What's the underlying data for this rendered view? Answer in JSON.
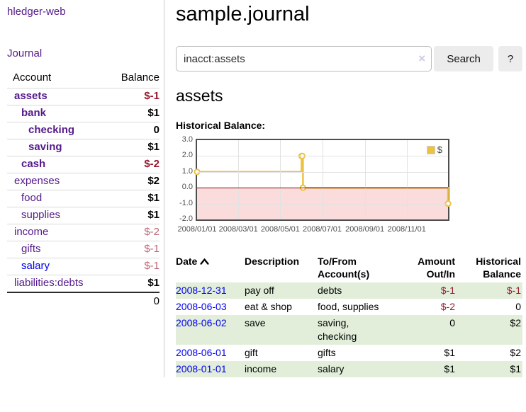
{
  "brand": "hledger-web",
  "sidebar": {
    "journal_link": "Journal",
    "accounts": {
      "header": {
        "account": "Account",
        "balance": "Balance"
      },
      "rows": [
        {
          "name": "assets",
          "depth": 1,
          "emphasis": true,
          "balance": "$-1",
          "negative": true,
          "link_tone": "visited"
        },
        {
          "name": "bank",
          "depth": 2,
          "emphasis": true,
          "balance": "$1",
          "negative": false,
          "link_tone": "visited"
        },
        {
          "name": "checking",
          "depth": 3,
          "emphasis": true,
          "balance": "0",
          "negative": false,
          "link_tone": "visited"
        },
        {
          "name": "saving",
          "depth": 3,
          "emphasis": true,
          "balance": "$1",
          "negative": false,
          "link_tone": "visited"
        },
        {
          "name": "cash",
          "depth": 2,
          "emphasis": true,
          "balance": "$-2",
          "negative": true,
          "link_tone": "visited"
        },
        {
          "name": "expenses",
          "depth": 1,
          "emphasis": false,
          "balance": "$2",
          "negative": false,
          "link_tone": "visited"
        },
        {
          "name": "food",
          "depth": 2,
          "emphasis": false,
          "balance": "$1",
          "negative": false,
          "link_tone": "visited"
        },
        {
          "name": "supplies",
          "depth": 2,
          "emphasis": false,
          "balance": "$1",
          "negative": false,
          "link_tone": "visited"
        },
        {
          "name": "income",
          "depth": 1,
          "emphasis": false,
          "balance": "$-2",
          "negative": true,
          "link_tone": "visited"
        },
        {
          "name": "gifts",
          "depth": 2,
          "emphasis": false,
          "balance": "$-1",
          "negative": true,
          "link_tone": "visited"
        },
        {
          "name": "salary",
          "depth": 2,
          "emphasis": false,
          "balance": "$-1",
          "negative": true,
          "link_tone": "unvisited"
        },
        {
          "name": "liabilities:debts",
          "depth": 1,
          "emphasis": false,
          "balance": "$1",
          "negative": false,
          "link_tone": "visited"
        }
      ],
      "total": "0"
    }
  },
  "main": {
    "title": "sample.journal",
    "search": {
      "value": "inacct:assets",
      "clear_icon": "×",
      "search_button": "Search",
      "help_button": "?"
    },
    "account_heading": "assets",
    "section_label": "Historical Balance:"
  },
  "chart_data": {
    "type": "line",
    "step": true,
    "title": "Historical Balance:",
    "x_start": "2008-01-01",
    "x_end": "2008-12-31",
    "ylim": [
      -2,
      3
    ],
    "y_ticks": [
      {
        "label": "3.0",
        "value": 3
      },
      {
        "label": "2.0",
        "value": 2
      },
      {
        "label": "1.0",
        "value": 1
      },
      {
        "label": "0.0",
        "value": 0
      },
      {
        "label": "-1.0",
        "value": -1
      },
      {
        "label": "-2.0",
        "value": -2
      }
    ],
    "x_ticks": [
      {
        "label": "2008/01/01",
        "date": "2008-01-01"
      },
      {
        "label": "2008/03/01",
        "date": "2008-03-01"
      },
      {
        "label": "2008/05/01",
        "date": "2008-05-01"
      },
      {
        "label": "2008/07/01",
        "date": "2008-07-01"
      },
      {
        "label": "2008/09/01",
        "date": "2008-09-01"
      },
      {
        "label": "2008/11/01",
        "date": "2008-11-01"
      }
    ],
    "series": [
      {
        "name": "$",
        "color": "#edc240",
        "points": [
          {
            "date": "2008-01-01",
            "value": 1
          },
          {
            "date": "2008-06-01",
            "value": 2
          },
          {
            "date": "2008-06-02",
            "value": 2
          },
          {
            "date": "2008-06-03",
            "value": 0
          },
          {
            "date": "2008-12-31",
            "value": -1
          }
        ]
      }
    ],
    "legend": {
      "label": "$",
      "position": "top-right"
    },
    "colors": {
      "line": "#edc240",
      "negative_region": "#fadcdc",
      "zero_line": "#8b0000",
      "grid": "#e2e2e2",
      "border": "#4d4d4d"
    }
  },
  "register": {
    "headers": {
      "date": "Date",
      "description": "Description",
      "accounts": "To/From Account(s)",
      "amount": "Amount Out/In",
      "balance": "Historical Balance"
    },
    "sort_icon": "chevron-up",
    "rows": [
      {
        "date": "2008-12-31",
        "description": "pay off",
        "accounts": "debts",
        "amount": "$-1",
        "amount_negative": true,
        "balance": "$-1",
        "balance_negative": true
      },
      {
        "date": "2008-06-03",
        "description": "eat & shop",
        "accounts": "food, supplies",
        "amount": "$-2",
        "amount_negative": true,
        "balance": "0",
        "balance_negative": false
      },
      {
        "date": "2008-06-02",
        "description": "save",
        "accounts": "saving, checking",
        "amount": "0",
        "amount_negative": false,
        "balance": "$2",
        "balance_negative": false
      },
      {
        "date": "2008-06-01",
        "description": "gift",
        "accounts": "gifts",
        "amount": "$1",
        "amount_negative": false,
        "balance": "$2",
        "balance_negative": false
      },
      {
        "date": "2008-01-01",
        "description": "income",
        "accounts": "salary",
        "amount": "$1",
        "amount_negative": false,
        "balance": "$1",
        "balance_negative": false
      }
    ],
    "stripe_color": "#e2eeda"
  },
  "colors": {
    "link_visited": "#551a8b",
    "link_unvisited": "#0000ee",
    "negative_strong": "#96192e",
    "negative_soft": "#bf6577"
  }
}
